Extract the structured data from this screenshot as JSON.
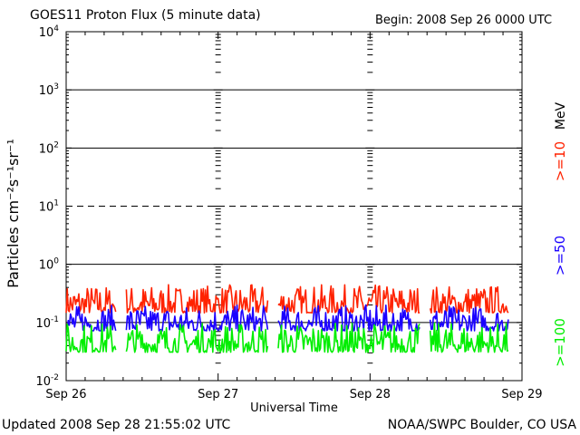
{
  "header": {
    "title": "GOES11 Proton Flux (5 minute data)",
    "begin": "Begin: 2008 Sep 26 0000 UTC"
  },
  "footer": {
    "updated": "Updated 2008 Sep 28 21:55:02 UTC",
    "credit": "NOAA/SWPC Boulder, CO USA"
  },
  "colors": {
    "ge10": "#ff2200",
    "ge50": "#1a00ff",
    "ge100": "#00ee00",
    "grid": "#000000",
    "background": "#ffffff"
  },
  "chart_data": {
    "type": "line",
    "title": "GOES11 Proton Flux (5 minute data)",
    "xlabel": "Universal Time",
    "ylabel": "Particles cm⁻²s⁻¹sr⁻¹",
    "yscale": "log",
    "ylim": [
      0.01,
      10000
    ],
    "xlim": [
      "2008-09-26 00:00",
      "2008-09-29 00:00"
    ],
    "x_ticks": [
      "Sep 26",
      "Sep 27",
      "Sep 28",
      "Sep 29"
    ],
    "y_ticks": [
      {
        "base": "10",
        "exp": "-2"
      },
      {
        "base": "10",
        "exp": "-1"
      },
      {
        "base": "10",
        "exp": "0"
      },
      {
        "base": "10",
        "exp": "1"
      },
      {
        "base": "10",
        "exp": "2"
      },
      {
        "base": "10",
        "exp": "3"
      },
      {
        "base": "10",
        "exp": "4"
      }
    ],
    "unit_label": "MeV",
    "data_gaps_utc": [
      [
        "2008-09-26 08:00",
        "2008-09-26 09:30"
      ],
      [
        "2008-09-27 08:00",
        "2008-09-27 09:30"
      ],
      [
        "2008-09-28 08:00",
        "2008-09-28 09:30"
      ]
    ],
    "data_end_utc": "2008-09-28 21:55",
    "series": [
      {
        "name": ">=10",
        "color": "#ff2200",
        "typical_range": [
          0.12,
          0.45
        ]
      },
      {
        "name": ">=50",
        "color": "#1a00ff",
        "typical_range": [
          0.06,
          0.2
        ]
      },
      {
        "name": ">=100",
        "color": "#00ee00",
        "typical_range": [
          0.025,
          0.1
        ]
      }
    ]
  }
}
